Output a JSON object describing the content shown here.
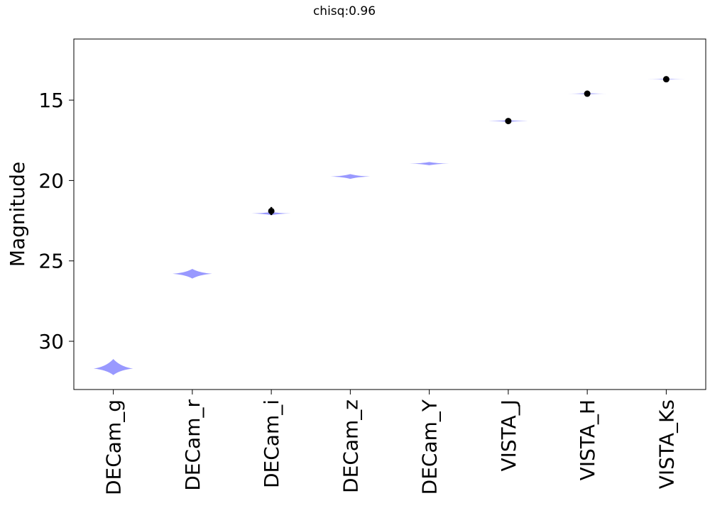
{
  "chart_data": {
    "type": "violin",
    "title": "chisq:0.96",
    "xlabel": "",
    "ylabel": "Magnitude",
    "y_inverted": true,
    "ylim": [
      33.0,
      11.2
    ],
    "yticks": [
      15,
      20,
      25,
      30
    ],
    "grid": false,
    "legend": "none",
    "violin_color": "#9999ff",
    "point_color": "#000000",
    "categories": [
      "DECam_g",
      "DECam_r",
      "DECam_i",
      "DECam_z",
      "DECam_Y",
      "VISTA_J",
      "VISTA_H",
      "VISTA_Ks"
    ],
    "violins": [
      {
        "center": 31.7,
        "low": 31.1,
        "high": 32.1,
        "max_width_frac": 0.5
      },
      {
        "center": 25.8,
        "low": 25.5,
        "high": 26.1,
        "max_width_frac": 0.5
      },
      {
        "center": 22.05,
        "low": 21.95,
        "high": 22.15,
        "max_width_frac": 0.5
      },
      {
        "center": 19.75,
        "low": 19.6,
        "high": 19.9,
        "max_width_frac": 0.5
      },
      {
        "center": 18.95,
        "low": 18.85,
        "high": 19.05,
        "max_width_frac": 0.5
      },
      {
        "center": 16.3,
        "low": 16.25,
        "high": 16.35,
        "max_width_frac": 0.5
      },
      {
        "center": 14.6,
        "low": 14.56,
        "high": 14.64,
        "max_width_frac": 0.5
      },
      {
        "center": 13.7,
        "low": 13.67,
        "high": 13.73,
        "max_width_frac": 0.5
      }
    ],
    "points": [
      {
        "category": "DECam_i",
        "y": 21.9,
        "err": 0.25
      },
      {
        "category": "VISTA_J",
        "y": 16.3,
        "err": 0.05
      },
      {
        "category": "VISTA_H",
        "y": 14.6,
        "err": 0.04
      },
      {
        "category": "VISTA_Ks",
        "y": 13.7,
        "err": 0.04
      }
    ]
  }
}
